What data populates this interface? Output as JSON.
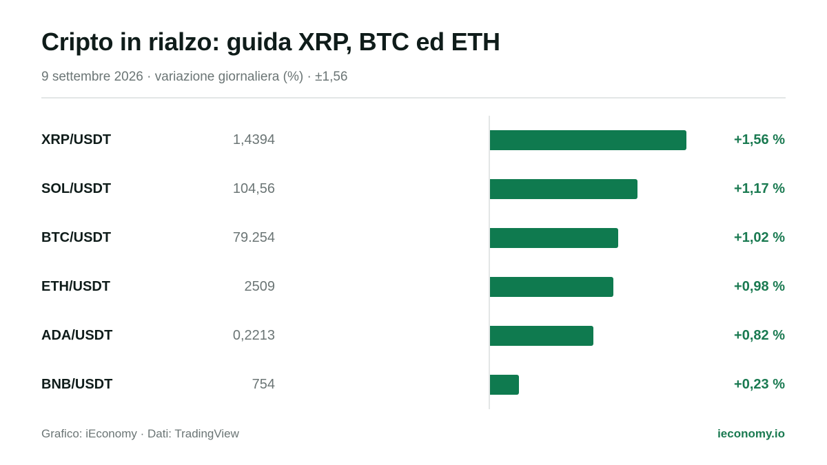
{
  "header": {
    "title": "Cripto in rialzo: guida XRP, BTC ed ETH",
    "subtitle": "9 settembre 2026 · variazione giornaliera (%) · ±1,56"
  },
  "footer": {
    "source": "Grafico: iEconomy · Dati: TradingView",
    "brand": "ieconomy.io"
  },
  "colors": {
    "bar": "#0f7a4f",
    "positive_text": "#1a7a51"
  },
  "chart_data": {
    "type": "bar",
    "orientation": "horizontal",
    "title": "Cripto in rialzo: guida XRP, BTC ed ETH",
    "xlim": [
      0,
      1.56
    ],
    "grid": false,
    "categories": [
      "XRP/USDT",
      "SOL/USDT",
      "BTC/USDT",
      "ETH/USDT",
      "ADA/USDT",
      "BNB/USDT"
    ],
    "prices": [
      "1,4394",
      "104,56",
      "79.254",
      "2509",
      "0,2213",
      "754"
    ],
    "values": [
      1.56,
      1.17,
      1.02,
      0.98,
      0.82,
      0.23
    ],
    "value_labels": [
      "+1,56 %",
      "+1,17 %",
      "+1,02 %",
      "+0,98 %",
      "+0,82 %",
      "+0,23 %"
    ]
  }
}
